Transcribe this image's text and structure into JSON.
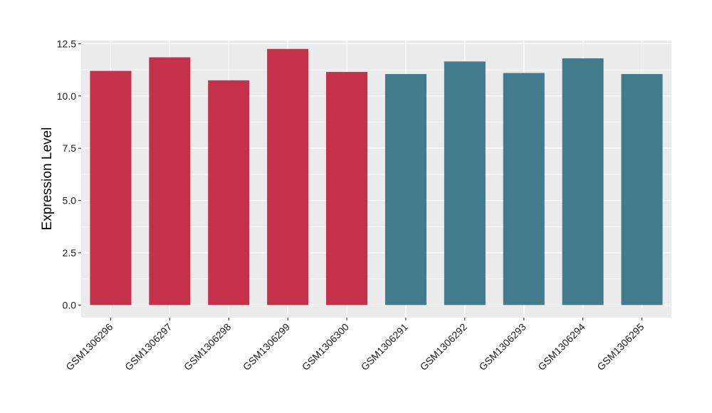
{
  "chart_data": {
    "type": "bar",
    "title": "",
    "xlabel": "",
    "ylabel": "Expression Level",
    "ylim": [
      -0.6,
      12.65
    ],
    "yticks": [
      0.0,
      2.5,
      5.0,
      7.5,
      10.0,
      12.5
    ],
    "ytick_labels": [
      "0.0",
      "2.5",
      "5.0",
      "7.5",
      "10.0",
      "12.5"
    ],
    "grid": true,
    "legend": "none",
    "categories": [
      "GSM1306296",
      "GSM1306297",
      "GSM1306298",
      "GSM1306299",
      "GSM1306300",
      "GSM1306291",
      "GSM1306292",
      "GSM1306293",
      "GSM1306294",
      "GSM1306295"
    ],
    "values": [
      11.2,
      11.85,
      10.75,
      12.25,
      11.15,
      11.05,
      11.65,
      11.1,
      11.8,
      11.05
    ],
    "bar_colors": [
      "#c5304a",
      "#c5304a",
      "#c5304a",
      "#c5304a",
      "#c5304a",
      "#427b8b",
      "#427b8b",
      "#427b8b",
      "#427b8b",
      "#427b8b"
    ],
    "panel_background": "#ebebeb",
    "grid_color": "#ffffff"
  }
}
